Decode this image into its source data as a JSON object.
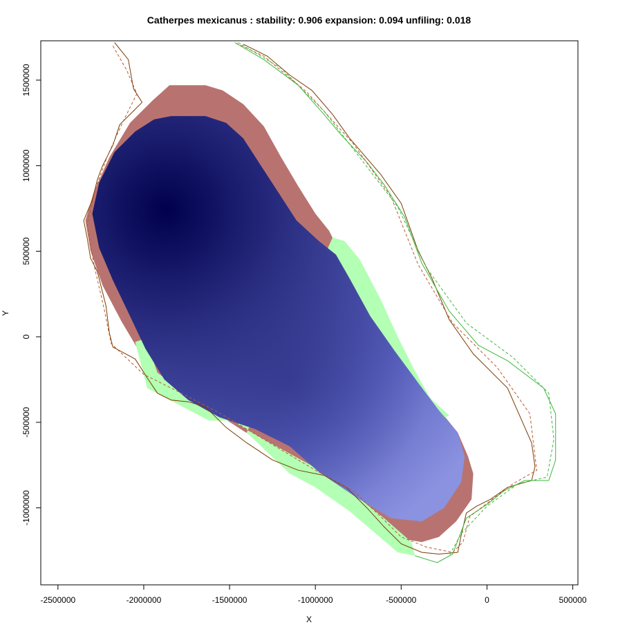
{
  "chart_data": {
    "type": "heatmap",
    "title": "Catherpes mexicanus : stability: 0.906 expansion: 0.094 unfiling: 0.018",
    "xlabel": "X",
    "ylabel": "Y",
    "xlim": [
      -2600000,
      530000
    ],
    "ylim": [
      -1450000,
      1730000
    ],
    "x_ticks": [
      -2500000,
      -2000000,
      -1500000,
      -1000000,
      -500000,
      0,
      500000
    ],
    "x_tick_labels": [
      "-2500000",
      "-2000000",
      "-1500000",
      "-1000000",
      "-500000",
      "0",
      "500000"
    ],
    "y_ticks": [
      -1000000,
      -500000,
      0,
      500000,
      1000000,
      1500000
    ],
    "y_tick_labels": [
      "-1000000",
      "-500000",
      "0",
      "500000",
      "1000000",
      "1500000"
    ],
    "grid": false,
    "legend": "none",
    "cell_size": 50000,
    "layers": [
      {
        "name": "unfilling",
        "color": "#b87370",
        "polygon": [
          [
            -1850000,
            1470000
          ],
          [
            -1640000,
            1470000
          ],
          [
            -1540000,
            1440000
          ],
          [
            -1420000,
            1360000
          ],
          [
            -1300000,
            1230000
          ],
          [
            -1200000,
            1050000
          ],
          [
            -1100000,
            880000
          ],
          [
            -1000000,
            720000
          ],
          [
            -920000,
            620000
          ],
          [
            -860000,
            500000
          ],
          [
            -780000,
            300000
          ],
          [
            -650000,
            80000
          ],
          [
            -480000,
            -150000
          ],
          [
            -300000,
            -400000
          ],
          [
            -170000,
            -560000
          ],
          [
            -110000,
            -700000
          ],
          [
            -80000,
            -800000
          ],
          [
            -90000,
            -950000
          ],
          [
            -180000,
            -1080000
          ],
          [
            -280000,
            -1170000
          ],
          [
            -380000,
            -1200000
          ],
          [
            -560000,
            -1170000
          ],
          [
            -780000,
            -1000000
          ],
          [
            -1000000,
            -860000
          ],
          [
            -1200000,
            -680000
          ],
          [
            -1420000,
            -550000
          ],
          [
            -1620000,
            -420000
          ],
          [
            -1870000,
            -300000
          ],
          [
            -2000000,
            -130000
          ],
          [
            -2130000,
            90000
          ],
          [
            -2240000,
            300000
          ],
          [
            -2310000,
            500000
          ],
          [
            -2340000,
            680000
          ],
          [
            -2290000,
            850000
          ],
          [
            -2200000,
            1050000
          ],
          [
            -2080000,
            1250000
          ],
          [
            -1950000,
            1380000
          ]
        ]
      },
      {
        "name": "expansion",
        "color": "#b3ffb3",
        "polygon": [
          [
            -900000,
            580000
          ],
          [
            -830000,
            560000
          ],
          [
            -740000,
            450000
          ],
          [
            -620000,
            220000
          ],
          [
            -520000,
            0
          ],
          [
            -420000,
            -200000
          ],
          [
            -330000,
            -360000
          ],
          [
            -220000,
            -460000
          ],
          [
            -350000,
            -520000
          ],
          [
            -560000,
            -380000
          ],
          [
            -780000,
            -150000
          ],
          [
            -1000000,
            180000
          ],
          [
            -1150000,
            -350000
          ],
          [
            -1500000,
            -490000
          ],
          [
            -1620000,
            -490000
          ],
          [
            -1980000,
            -300000
          ],
          [
            -2050000,
            -30000
          ],
          [
            -1990000,
            -10000
          ],
          [
            -1920000,
            -210000
          ],
          [
            -1760000,
            -330000
          ],
          [
            -1300000,
            -600000
          ],
          [
            -900000,
            -820000
          ],
          [
            -600000,
            -1060000
          ],
          [
            -440000,
            -1200000
          ],
          [
            -420000,
            -1280000
          ],
          [
            -520000,
            -1260000
          ],
          [
            -800000,
            -1020000
          ],
          [
            -1000000,
            -880000
          ],
          [
            -1150000,
            -800000
          ],
          [
            -1400000,
            -560000
          ]
        ]
      },
      {
        "name": "stability",
        "color_low": "#8b92e0",
        "color_high": "#00004d",
        "peak": [
          -1870000,
          740000
        ],
        "secondary_peak": [
          -1150000,
          -250000
        ],
        "polygon": [
          [
            -1840000,
            1290000
          ],
          [
            -1640000,
            1290000
          ],
          [
            -1520000,
            1250000
          ],
          [
            -1420000,
            1160000
          ],
          [
            -1330000,
            1020000
          ],
          [
            -1220000,
            850000
          ],
          [
            -1110000,
            680000
          ],
          [
            -980000,
            560000
          ],
          [
            -880000,
            480000
          ],
          [
            -800000,
            340000
          ],
          [
            -680000,
            120000
          ],
          [
            -540000,
            -80000
          ],
          [
            -400000,
            -270000
          ],
          [
            -280000,
            -430000
          ],
          [
            -170000,
            -560000
          ],
          [
            -130000,
            -700000
          ],
          [
            -150000,
            -850000
          ],
          [
            -250000,
            -1000000
          ],
          [
            -380000,
            -1080000
          ],
          [
            -560000,
            -1060000
          ],
          [
            -760000,
            -940000
          ],
          [
            -980000,
            -790000
          ],
          [
            -1150000,
            -640000
          ],
          [
            -1350000,
            -540000
          ],
          [
            -1560000,
            -470000
          ],
          [
            -1740000,
            -370000
          ],
          [
            -1880000,
            -250000
          ],
          [
            -1990000,
            -70000
          ],
          [
            -2080000,
            120000
          ],
          [
            -2180000,
            330000
          ],
          [
            -2260000,
            520000
          ],
          [
            -2300000,
            720000
          ],
          [
            -2260000,
            900000
          ],
          [
            -2170000,
            1080000
          ],
          [
            -2050000,
            1200000
          ],
          [
            -1940000,
            1270000
          ]
        ]
      }
    ],
    "outlines": [
      {
        "name": "native-range",
        "color": "#7a3b00",
        "style": "solid",
        "points": [
          [
            -2170000,
            1720000
          ],
          [
            -2090000,
            1620000
          ],
          [
            -2060000,
            1450000
          ],
          [
            -2010000,
            1370000
          ],
          [
            -2060000,
            1320000
          ],
          [
            -2140000,
            1240000
          ],
          [
            -2180000,
            1120000
          ],
          [
            -2240000,
            1000000
          ],
          [
            -2270000,
            920000
          ],
          [
            -2300000,
            800000
          ],
          [
            -2350000,
            680000
          ],
          [
            -2330000,
            580000
          ],
          [
            -2310000,
            460000
          ],
          [
            -2270000,
            380000
          ],
          [
            -2220000,
            180000
          ],
          [
            -2200000,
            20000
          ],
          [
            -2180000,
            -60000
          ],
          [
            -2050000,
            -130000
          ],
          [
            -1980000,
            -240000
          ],
          [
            -1920000,
            -330000
          ],
          [
            -1840000,
            -370000
          ],
          [
            -1740000,
            -380000
          ],
          [
            -1640000,
            -410000
          ],
          [
            -1520000,
            -530000
          ],
          [
            -1400000,
            -620000
          ],
          [
            -1250000,
            -720000
          ],
          [
            -1100000,
            -780000
          ],
          [
            -950000,
            -810000
          ],
          [
            -820000,
            -880000
          ],
          [
            -700000,
            -1000000
          ],
          [
            -600000,
            -1110000
          ],
          [
            -500000,
            -1210000
          ],
          [
            -380000,
            -1260000
          ],
          [
            -280000,
            -1270000
          ],
          [
            -170000,
            -1260000
          ],
          [
            -150000,
            -1160000
          ],
          [
            -120000,
            -1030000
          ],
          [
            -60000,
            -990000
          ],
          [
            20000,
            -950000
          ],
          [
            120000,
            -880000
          ],
          [
            260000,
            -840000
          ],
          [
            280000,
            -760000
          ],
          [
            260000,
            -620000
          ],
          [
            120000,
            -300000
          ],
          [
            -80000,
            -100000
          ],
          [
            -220000,
            100000
          ],
          [
            -320000,
            340000
          ],
          [
            -400000,
            500000
          ],
          [
            -500000,
            780000
          ],
          [
            -620000,
            950000
          ],
          [
            -800000,
            1160000
          ],
          [
            -900000,
            1300000
          ],
          [
            -1020000,
            1440000
          ],
          [
            -1150000,
            1530000
          ],
          [
            -1280000,
            1640000
          ],
          [
            -1420000,
            1710000
          ]
        ]
      },
      {
        "name": "invaded-range",
        "color": "#3cb83c",
        "style": "solid",
        "points": [
          [
            -1470000,
            1720000
          ],
          [
            -1300000,
            1620000
          ],
          [
            -1100000,
            1470000
          ],
          [
            -950000,
            1300000
          ],
          [
            -850000,
            1180000
          ],
          [
            -700000,
            1020000
          ],
          [
            -600000,
            890000
          ],
          [
            -480000,
            700000
          ],
          [
            -380000,
            430000
          ],
          [
            -220000,
            150000
          ],
          [
            -50000,
            -50000
          ],
          [
            120000,
            -140000
          ],
          [
            330000,
            -300000
          ],
          [
            400000,
            -450000
          ],
          [
            400000,
            -720000
          ],
          [
            360000,
            -840000
          ],
          [
            220000,
            -840000
          ],
          [
            100000,
            -900000
          ],
          [
            0,
            -980000
          ],
          [
            -120000,
            -1060000
          ],
          [
            -200000,
            -1270000
          ],
          [
            -290000,
            -1320000
          ],
          [
            -420000,
            -1280000
          ]
        ]
      },
      {
        "name": "native-range-smoothed",
        "color": "#b85a2e",
        "style": "dashed",
        "points": [
          [
            -2180000,
            1700000
          ],
          [
            -2100000,
            1560000
          ],
          [
            -2040000,
            1420000
          ],
          [
            -2120000,
            1260000
          ],
          [
            -2210000,
            1060000
          ],
          [
            -2280000,
            870000
          ],
          [
            -2330000,
            660000
          ],
          [
            -2290000,
            420000
          ],
          [
            -2230000,
            160000
          ],
          [
            -2190000,
            -40000
          ],
          [
            -2000000,
            -220000
          ],
          [
            -1800000,
            -320000
          ],
          [
            -1550000,
            -450000
          ],
          [
            -1300000,
            -600000
          ],
          [
            -1000000,
            -780000
          ],
          [
            -780000,
            -900000
          ],
          [
            -620000,
            -1050000
          ],
          [
            -500000,
            -1170000
          ],
          [
            -350000,
            -1230000
          ],
          [
            -200000,
            -1260000
          ],
          [
            -140000,
            -1200000
          ],
          [
            -100000,
            -1050000
          ],
          [
            150000,
            -860000
          ],
          [
            290000,
            -780000
          ],
          [
            250000,
            -450000
          ],
          [
            60000,
            -180000
          ],
          [
            -200000,
            80000
          ],
          [
            -400000,
            420000
          ],
          [
            -560000,
            820000
          ],
          [
            -780000,
            1130000
          ],
          [
            -1050000,
            1430000
          ],
          [
            -1300000,
            1640000
          ],
          [
            -1470000,
            1720000
          ]
        ]
      },
      {
        "name": "invaded-range-smoothed",
        "color": "#3cb83c",
        "style": "dashed",
        "points": [
          [
            -1450000,
            1720000
          ],
          [
            -1200000,
            1570000
          ],
          [
            -950000,
            1320000
          ],
          [
            -720000,
            1020000
          ],
          [
            -520000,
            760000
          ],
          [
            -350000,
            400000
          ],
          [
            -120000,
            80000
          ],
          [
            150000,
            -120000
          ],
          [
            360000,
            -330000
          ],
          [
            390000,
            -600000
          ],
          [
            350000,
            -820000
          ],
          [
            180000,
            -860000
          ],
          [
            0,
            -990000
          ],
          [
            -150000,
            -1150000
          ],
          [
            -220000,
            -1280000
          ]
        ]
      }
    ]
  }
}
